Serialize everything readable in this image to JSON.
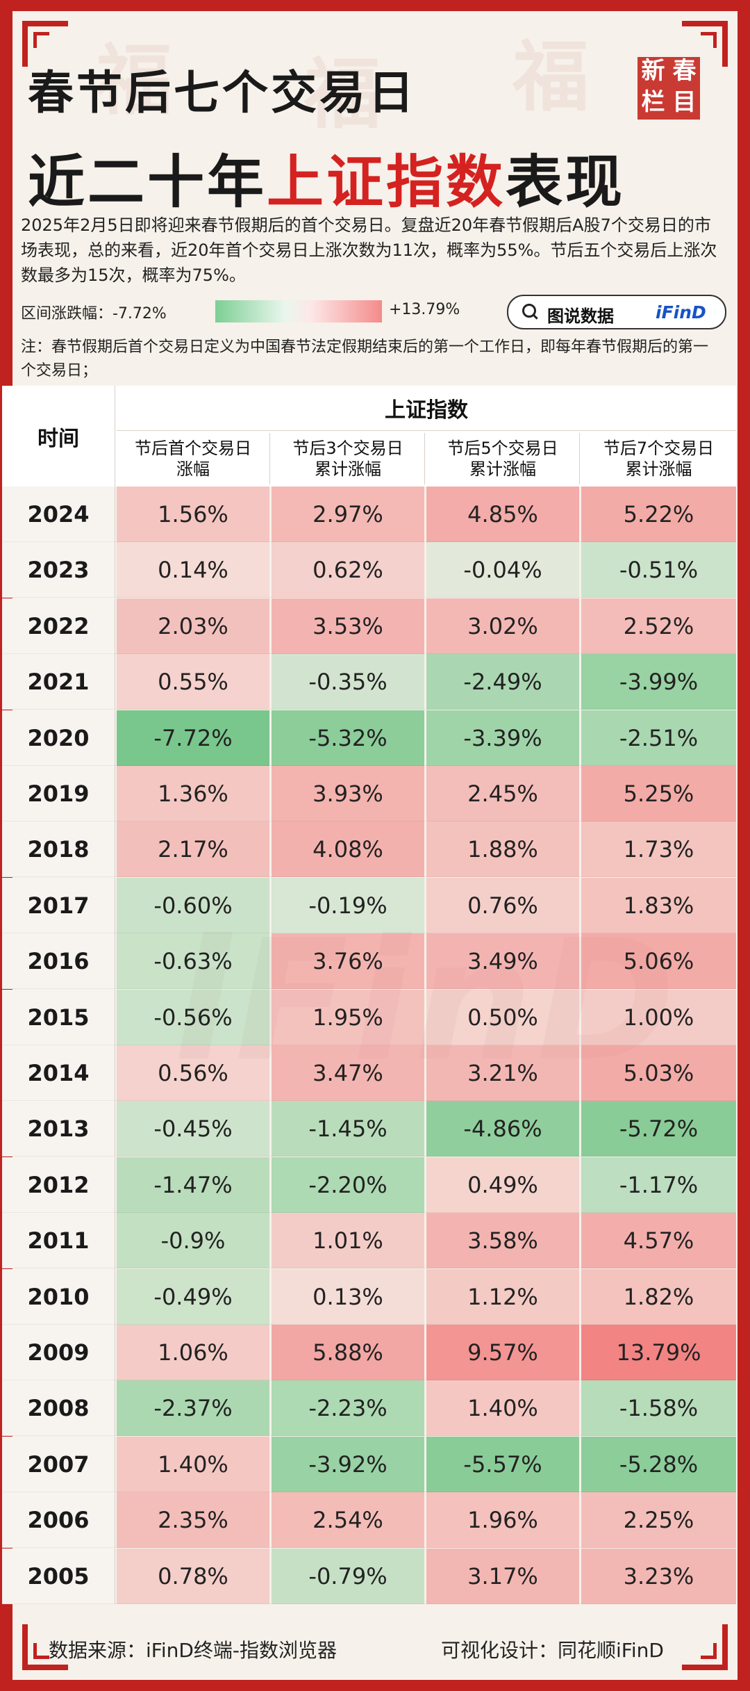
{
  "header": {
    "title_line1": "春节后七个交易日",
    "title_line2_prefix": "近二十年",
    "title_line2_highlight": "上证指数",
    "title_line2_suffix": "表现",
    "stamp_chars": [
      "新",
      "春",
      "栏",
      "目"
    ]
  },
  "description": "2025年2月5日即将迎来春节假期后的首个交易日。复盘近20年春节假期后A股7个交易日的市场表现，总的来看，近20年首个交易日上涨次数为11次，概率为55%。节后五个交易后上涨次数最多为15次，概率为75%。",
  "legend": {
    "label": "区间涨跌幅：-7.72%",
    "max_label": "+13.79%",
    "min": -7.72,
    "max": 13.79,
    "neg_color": "#7dcf94",
    "pos_color": "#f48b8b"
  },
  "search": {
    "text": "图说数据",
    "brand": "iFinD",
    "icon": "search-icon"
  },
  "note": "注：春节假期后首个交易日定义为中国春节法定假期结束后的第一个工作日，即每年春节假期后的第一个交易日；",
  "footer": {
    "source": "数据来源：iFinD终端-指数浏览器",
    "design": "可视化设计：同花顺iFinD"
  },
  "watermark": "iFinD",
  "chart_data": {
    "type": "table",
    "row_header": "时间",
    "group_header": "上证指数",
    "columns": [
      {
        "line1": "节后首个交易日",
        "line2": "涨幅"
      },
      {
        "line1": "节后3个交易日",
        "line2": "累计涨幅"
      },
      {
        "line1": "节后5个交易日",
        "line2": "累计涨幅"
      },
      {
        "line1": "节后7个交易日",
        "line2": "累计涨幅"
      }
    ],
    "rows": [
      {
        "year": "2024",
        "values": [
          "1.56%",
          "2.97%",
          "4.85%",
          "5.22%"
        ]
      },
      {
        "year": "2023",
        "values": [
          "0.14%",
          "0.62%",
          "-0.04%",
          "-0.51%"
        ]
      },
      {
        "year": "2022",
        "values": [
          "2.03%",
          "3.53%",
          "3.02%",
          "2.52%"
        ]
      },
      {
        "year": "2021",
        "values": [
          "0.55%",
          "-0.35%",
          "-2.49%",
          "-3.99%"
        ]
      },
      {
        "year": "2020",
        "values": [
          "-7.72%",
          "-5.32%",
          "-3.39%",
          "-2.51%"
        ]
      },
      {
        "year": "2019",
        "values": [
          "1.36%",
          "3.93%",
          "2.45%",
          "5.25%"
        ]
      },
      {
        "year": "2018",
        "values": [
          "2.17%",
          "4.08%",
          "1.88%",
          "1.73%"
        ]
      },
      {
        "year": "2017",
        "values": [
          "-0.60%",
          "-0.19%",
          "0.76%",
          "1.83%"
        ]
      },
      {
        "year": "2016",
        "values": [
          "-0.63%",
          "3.76%",
          "3.49%",
          "5.06%"
        ]
      },
      {
        "year": "2015",
        "values": [
          "-0.56%",
          "1.95%",
          "0.50%",
          "1.00%"
        ]
      },
      {
        "year": "2014",
        "values": [
          "0.56%",
          "3.47%",
          "3.21%",
          "5.03%"
        ]
      },
      {
        "year": "2013",
        "values": [
          "-0.45%",
          "-1.45%",
          "-4.86%",
          "-5.72%"
        ]
      },
      {
        "year": "2012",
        "values": [
          "-1.47%",
          "-2.20%",
          "0.49%",
          "-1.17%"
        ]
      },
      {
        "year": "2011",
        "values": [
          "-0.9%",
          "1.01%",
          "3.58%",
          "4.57%"
        ]
      },
      {
        "year": "2010",
        "values": [
          "-0.49%",
          "0.13%",
          "1.12%",
          "1.82%"
        ]
      },
      {
        "year": "2009",
        "values": [
          "1.06%",
          "5.88%",
          "9.57%",
          "13.79%"
        ]
      },
      {
        "year": "2008",
        "values": [
          "-2.37%",
          "-2.23%",
          "1.40%",
          "-1.58%"
        ]
      },
      {
        "year": "2007",
        "values": [
          "1.40%",
          "-3.92%",
          "-5.57%",
          "-5.28%"
        ]
      },
      {
        "year": "2006",
        "values": [
          "2.35%",
          "2.54%",
          "1.96%",
          "2.25%"
        ]
      },
      {
        "year": "2005",
        "values": [
          "0.78%",
          "-0.79%",
          "3.17%",
          "3.23%"
        ]
      }
    ]
  }
}
